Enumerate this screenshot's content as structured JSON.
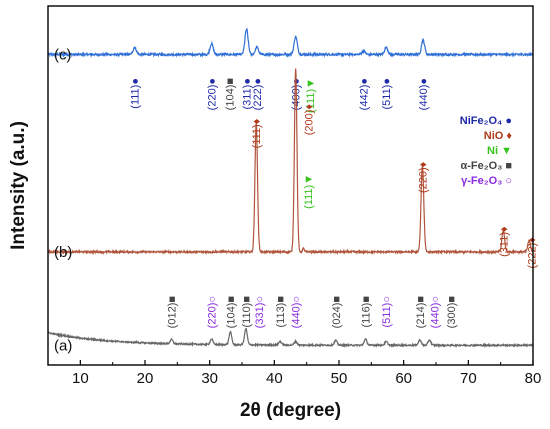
{
  "chart_data": {
    "type": "line",
    "xlabel": "2θ (degree)",
    "ylabel": "Intensity (a.u.)",
    "xlim": [
      5,
      80
    ],
    "x_ticks": [
      10,
      20,
      30,
      40,
      50,
      60,
      70,
      80
    ],
    "y_ticks_shown": false,
    "grid": false,
    "legend_position": "right, below top trace",
    "legend": [
      {
        "text": "NiFe₂O₄",
        "marker": "●",
        "color": "#1f2aa8"
      },
      {
        "text": "NiO",
        "marker": "♦",
        "color": "#b03a1a"
      },
      {
        "text": "Ni",
        "marker": "▼",
        "color": "#35c21a"
      },
      {
        "text": "α-Fe₂O₃",
        "marker": "■",
        "color": "#444444"
      },
      {
        "text": "γ-Fe₂O₃",
        "marker": "○",
        "color": "#8a2be2"
      }
    ],
    "series": [
      {
        "label": "(c)",
        "color": "#2f6fd6",
        "offset": 0.865,
        "noise": 0.006,
        "peaks": [
          {
            "x": 18.4,
            "h": 0.02,
            "w": 0.35
          },
          {
            "x": 30.3,
            "h": 0.03,
            "w": 0.35
          },
          {
            "x": 35.7,
            "h": 0.07,
            "w": 0.35
          },
          {
            "x": 37.3,
            "h": 0.02,
            "w": 0.35
          },
          {
            "x": 43.3,
            "h": 0.05,
            "w": 0.35
          },
          {
            "x": 53.8,
            "h": 0.01,
            "w": 0.35
          },
          {
            "x": 57.3,
            "h": 0.02,
            "w": 0.35
          },
          {
            "x": 63.0,
            "h": 0.04,
            "w": 0.35
          }
        ],
        "annotations": [
          {
            "x": 18.4,
            "text": "(111)",
            "marker": "●",
            "color": "#1f2aa8"
          },
          {
            "x": 30.3,
            "text": "(220)",
            "marker": "●",
            "color": "#1f2aa8"
          },
          {
            "x": 33.1,
            "text": "(104)",
            "marker": "■",
            "color": "#444444"
          },
          {
            "x": 35.7,
            "text": "(311)",
            "marker": "●",
            "color": "#1f2aa8"
          },
          {
            "x": 37.3,
            "text": "(222)",
            "marker": "●",
            "color": "#1f2aa8"
          },
          {
            "x": 43.3,
            "text": "(400)",
            "marker": "●",
            "color": "#1f2aa8"
          },
          {
            "x": 45.5,
            "text": "(111)",
            "marker": "▼",
            "color": "#35c21a"
          },
          {
            "x": 53.8,
            "text": "(442)",
            "marker": "●",
            "color": "#1f2aa8"
          },
          {
            "x": 57.3,
            "text": "(511)",
            "marker": "●",
            "color": "#1f2aa8"
          },
          {
            "x": 63.0,
            "text": "(440)",
            "marker": "●",
            "color": "#1f2aa8"
          }
        ]
      },
      {
        "label": "(b)",
        "color": "#b0553c",
        "offset": 0.315,
        "noise": 0.005,
        "peaks": [
          {
            "x": 37.2,
            "h": 0.36,
            "w": 0.28
          },
          {
            "x": 43.3,
            "h": 0.51,
            "w": 0.28
          },
          {
            "x": 44.5,
            "h": 0.01,
            "w": 0.2
          },
          {
            "x": 62.9,
            "h": 0.24,
            "w": 0.3
          },
          {
            "x": 75.4,
            "h": 0.06,
            "w": 0.3
          },
          {
            "x": 79.4,
            "h": 0.03,
            "w": 0.3
          }
        ],
        "annotations": [
          {
            "x": 37.2,
            "text": "(111)",
            "marker": "♦",
            "color": "#b03a1a"
          },
          {
            "x": 45.3,
            "text": "(200)",
            "marker": "♦",
            "color": "#b03a1a"
          },
          {
            "x": 45.2,
            "text": "(111)",
            "marker": "▼",
            "color": "#35c21a"
          },
          {
            "x": 62.9,
            "text": "(220)",
            "marker": "♦",
            "color": "#b03a1a"
          },
          {
            "x": 75.4,
            "text": "(311)",
            "marker": "♦",
            "color": "#b03a1a"
          },
          {
            "x": 79.8,
            "text": "(222)",
            "marker": "♦",
            "color": "#b03a1a"
          }
        ]
      },
      {
        "label": "(a)",
        "color": "#666666",
        "offset": 0.055,
        "noise": 0.004,
        "peaks": [
          {
            "x": 24.1,
            "h": 0.012,
            "w": 0.3
          },
          {
            "x": 30.3,
            "h": 0.015,
            "w": 0.3
          },
          {
            "x": 33.2,
            "h": 0.035,
            "w": 0.3
          },
          {
            "x": 35.6,
            "h": 0.045,
            "w": 0.3
          },
          {
            "x": 40.9,
            "h": 0.01,
            "w": 0.3
          },
          {
            "x": 43.3,
            "h": 0.01,
            "w": 0.3
          },
          {
            "x": 49.5,
            "h": 0.013,
            "w": 0.3
          },
          {
            "x": 54.1,
            "h": 0.017,
            "w": 0.3
          },
          {
            "x": 57.3,
            "h": 0.01,
            "w": 0.3
          },
          {
            "x": 62.5,
            "h": 0.015,
            "w": 0.3
          },
          {
            "x": 64.0,
            "h": 0.015,
            "w": 0.3
          }
        ],
        "annotations": [
          {
            "x": 24.1,
            "text": "(012)",
            "marker": "■",
            "color": "#444444"
          },
          {
            "x": 30.3,
            "text": "(220)",
            "marker": "○",
            "color": "#8a2be2"
          },
          {
            "x": 33.2,
            "text": "(104)",
            "marker": "■",
            "color": "#444444"
          },
          {
            "x": 35.6,
            "text": "(110)",
            "marker": "■",
            "color": "#444444"
          },
          {
            "x": 37.6,
            "text": "(331)",
            "marker": "○",
            "color": "#8a2be2"
          },
          {
            "x": 40.9,
            "text": "(113)",
            "marker": "■",
            "color": "#444444"
          },
          {
            "x": 43.3,
            "text": "(440)",
            "marker": "○",
            "color": "#8a2be2"
          },
          {
            "x": 49.5,
            "text": "(024)",
            "marker": "■",
            "color": "#444444"
          },
          {
            "x": 54.1,
            "text": "(116)",
            "marker": "■",
            "color": "#444444"
          },
          {
            "x": 57.3,
            "text": "(511)",
            "marker": "○",
            "color": "#8a2be2"
          },
          {
            "x": 62.5,
            "text": "(214)",
            "marker": "■",
            "color": "#444444"
          },
          {
            "x": 64.8,
            "text": "(440)",
            "marker": "○",
            "color": "#8a2be2"
          },
          {
            "x": 67.3,
            "text": "(300)",
            "marker": "■",
            "color": "#444444"
          }
        ]
      }
    ]
  }
}
